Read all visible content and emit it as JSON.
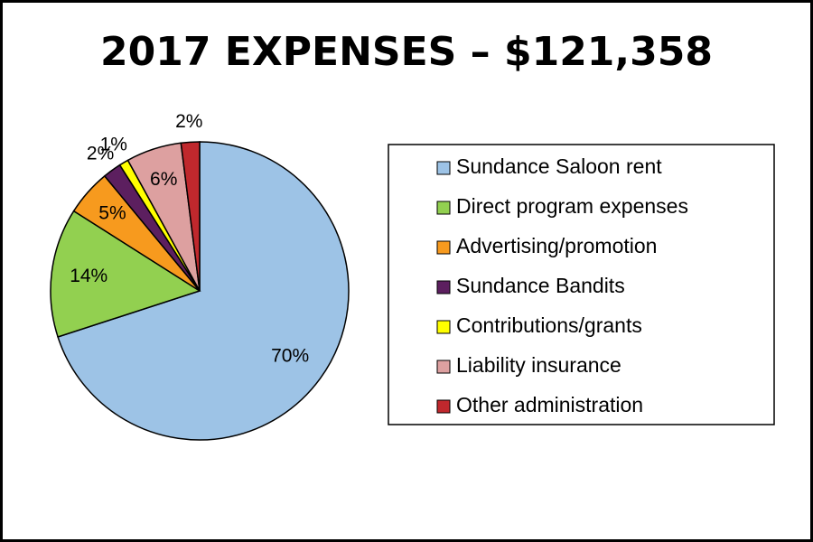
{
  "chart_data": {
    "type": "pie",
    "title": "2017 EXPENSES – $121,358",
    "categories": [
      "Sundance Saloon rent",
      "Direct program expenses",
      "Advertising/promotion",
      "Sundance Bandits",
      "Contributions/grants",
      "Liability insurance",
      "Other administration"
    ],
    "values": [
      70,
      14,
      5,
      2,
      1,
      6,
      2
    ],
    "value_labels": [
      "70%",
      "14%",
      "5%",
      "2%",
      "1%",
      "6%",
      "2%"
    ],
    "colors": [
      "#9dc3e6",
      "#92d050",
      "#f79a1e",
      "#5c1f5f",
      "#ffff00",
      "#dda0a0",
      "#c0282d"
    ]
  }
}
